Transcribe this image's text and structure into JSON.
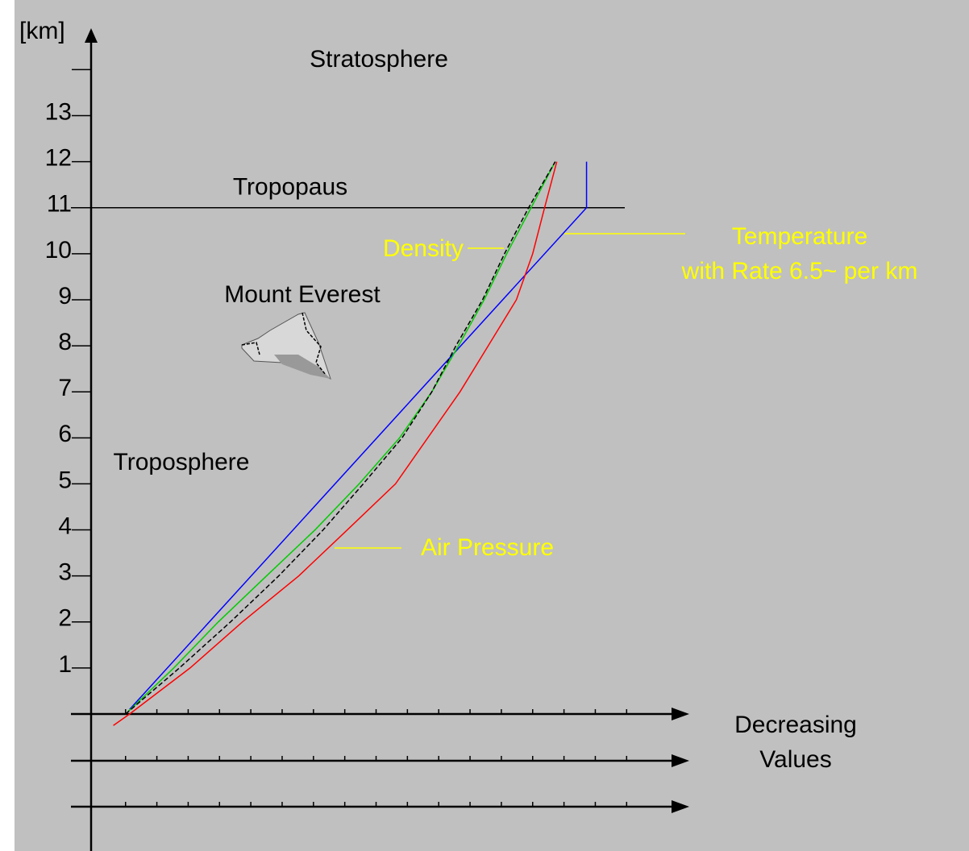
{
  "chart_data": {
    "type": "line",
    "y_label": "[km]",
    "x_label": [
      "Decreasing",
      "Values"
    ],
    "ylim": [
      0,
      14.9
    ],
    "yticks": [
      1,
      2,
      3,
      4,
      5,
      6,
      7,
      8,
      9,
      10,
      11,
      12,
      13
    ],
    "yminor_ticks": [
      14
    ],
    "xlim": [
      -1.1,
      18
    ],
    "xticks": [
      0,
      1,
      2,
      3,
      4,
      5,
      6,
      7,
      8,
      9,
      10,
      11,
      12,
      13,
      14,
      15,
      16
    ],
    "xtick_labels": false,
    "tropopause": {
      "label": "Tropopaus",
      "value": 11
    },
    "annotations": [
      "Stratosphere",
      "Mount Everest",
      "Troposphere"
    ],
    "series": [
      {
        "name": [
          "Temperature",
          "with Rate 6.5~ per km"
        ],
        "color": "#0000ff",
        "label_color": "#ffff00",
        "x": [
          0.13,
          14.72,
          14.72
        ],
        "values": [
          0.1,
          11,
          12
        ]
      },
      {
        "name": [
          "Density"
        ],
        "color": "#00cc00",
        "label_color": "#ffff00",
        "x": [
          0,
          1.54,
          2.96,
          4.5,
          6.05,
          7.46,
          8.75,
          9.78,
          10.63,
          11.45,
          12.17,
          12.95,
          13.72
        ],
        "values": [
          0,
          1,
          2,
          3,
          4,
          5,
          6,
          7,
          8,
          9,
          10,
          11,
          12
        ]
      },
      {
        "color": "#000000",
        "dashed": true,
        "x": [
          0,
          1.72,
          3.35,
          4.89,
          6.31,
          7.59,
          8.83,
          9.78,
          10.55,
          11.4,
          12.1,
          12.87,
          13.72
        ],
        "values": [
          0,
          1,
          2,
          3,
          4,
          5,
          6,
          7,
          8,
          9,
          10,
          11,
          12
        ]
      },
      {
        "name": [
          "Air Pressure"
        ],
        "color": "#ff0000",
        "label_color": "#ffff00",
        "x": [
          -0.39,
          0.13,
          2.06,
          3.73,
          5.53,
          7.08,
          8.62,
          9.65,
          10.68,
          11.58,
          12.48,
          13.0,
          13.38,
          13.77
        ],
        "values": [
          -0.25,
          0,
          1,
          2,
          3,
          4,
          5,
          6,
          7,
          8,
          9,
          10,
          11,
          12
        ]
      }
    ]
  }
}
